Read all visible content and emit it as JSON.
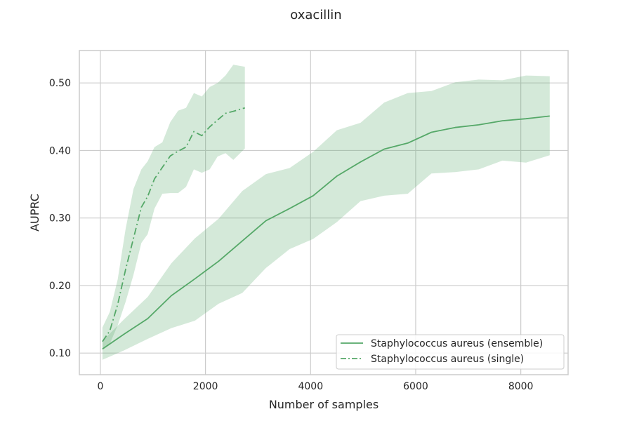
{
  "chart_data": {
    "type": "line",
    "title": "oxacillin",
    "xlabel": "Number of samples",
    "ylabel": "AUPRC",
    "xlim": [
      -400,
      8900
    ],
    "ylim": [
      0.068,
      0.548
    ],
    "xticks": [
      0,
      2000,
      4000,
      6000,
      8000
    ],
    "xtick_labels": [
      "0",
      "2000",
      "4000",
      "6000",
      "8000"
    ],
    "yticks": [
      0.1,
      0.2,
      0.3,
      0.4,
      0.5
    ],
    "ytick_labels": [
      "0.10",
      "0.20",
      "0.30",
      "0.40",
      "0.50"
    ],
    "grid": true,
    "legend_position": "lower-right",
    "color": "#55a868",
    "band_color": "#55a868",
    "band_opacity": 0.25,
    "series": [
      {
        "name": "Staphylococcus aureus (ensemble)",
        "style": "solid",
        "x": [
          40,
          450,
          900,
          1350,
          1800,
          2250,
          2700,
          3150,
          3600,
          4050,
          4500,
          4950,
          5400,
          5850,
          6300,
          6750,
          7200,
          7650,
          8100,
          8550
        ],
        "y": [
          0.106,
          0.128,
          0.151,
          0.185,
          0.21,
          0.236,
          0.266,
          0.296,
          0.314,
          0.333,
          0.362,
          0.383,
          0.402,
          0.411,
          0.427,
          0.434,
          0.438,
          0.444,
          0.447,
          0.451
        ],
        "upper": [
          0.118,
          0.15,
          0.183,
          0.233,
          0.27,
          0.299,
          0.34,
          0.365,
          0.374,
          0.398,
          0.43,
          0.441,
          0.471,
          0.485,
          0.488,
          0.501,
          0.505,
          0.504,
          0.511,
          0.51
        ],
        "lower": [
          0.09,
          0.104,
          0.121,
          0.137,
          0.148,
          0.173,
          0.189,
          0.226,
          0.254,
          0.269,
          0.294,
          0.325,
          0.333,
          0.336,
          0.366,
          0.368,
          0.372,
          0.385,
          0.382,
          0.393
        ]
      },
      {
        "name": "Staphylococcus aureus (single)",
        "style": "dashdot",
        "x": [
          40,
          180,
          330,
          480,
          630,
          780,
          900,
          1030,
          1180,
          1330,
          1480,
          1630,
          1780,
          1930,
          2080,
          2230,
          2380,
          2530,
          2750
        ],
        "y": [
          0.117,
          0.133,
          0.172,
          0.224,
          0.27,
          0.316,
          0.332,
          0.358,
          0.375,
          0.392,
          0.399,
          0.405,
          0.428,
          0.422,
          0.435,
          0.445,
          0.455,
          0.458,
          0.463
        ],
        "upper": [
          0.138,
          0.161,
          0.209,
          0.284,
          0.343,
          0.372,
          0.384,
          0.405,
          0.412,
          0.442,
          0.459,
          0.463,
          0.485,
          0.48,
          0.494,
          0.5,
          0.511,
          0.527,
          0.524
        ],
        "lower": [
          0.105,
          0.114,
          0.141,
          0.176,
          0.216,
          0.263,
          0.276,
          0.314,
          0.336,
          0.337,
          0.337,
          0.346,
          0.372,
          0.367,
          0.372,
          0.391,
          0.396,
          0.386,
          0.403
        ]
      }
    ]
  }
}
